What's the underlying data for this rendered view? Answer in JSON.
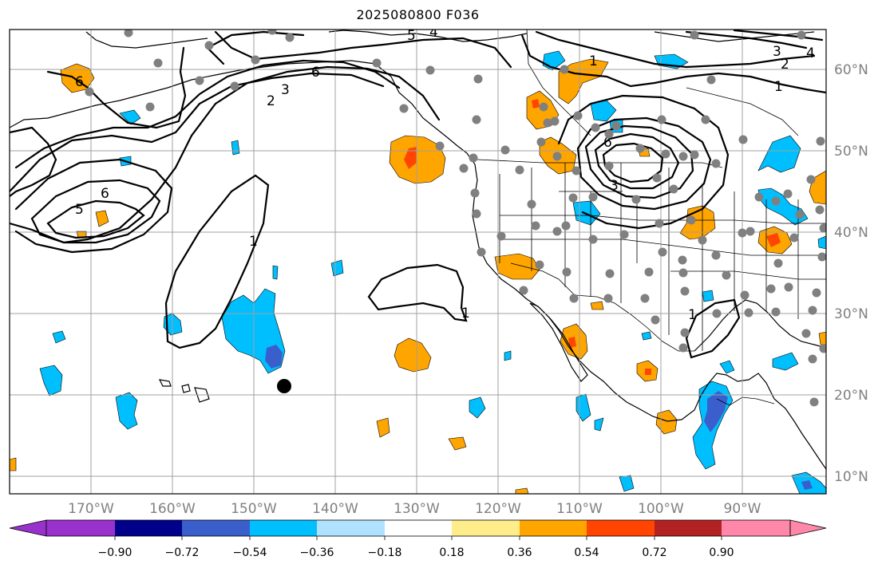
{
  "title": "2025080800 F036",
  "lon_labels": [
    "170°W",
    "160°W",
    "150°W",
    "140°W",
    "130°W",
    "120°W",
    "110°W",
    "100°W",
    "90°W"
  ],
  "lat_labels": [
    "60°N",
    "50°N",
    "40°N",
    "30°N",
    "20°N",
    "10°N"
  ],
  "colorbar": {
    "ticks": [
      "−0.90",
      "−0.72",
      "−0.54",
      "−0.36",
      "−0.18",
      "0.18",
      "0.36",
      "0.54",
      "0.72",
      "0.90"
    ],
    "colors": [
      "#9932cc",
      "#00008b",
      "#3a5fcd",
      "#00bfff",
      "#b0e2ff",
      "#ffffff",
      "#ffec8b",
      "#ffa500",
      "#ff4500",
      "#b22222",
      "#ff88aa"
    ]
  },
  "fill_colors": {
    "light_blue": "#00bfff",
    "mid_blue": "#3a5fcd",
    "orange": "#ffa500",
    "red_orange": "#ff4500"
  },
  "contour_labels": [
    "1",
    "1",
    "1",
    "1",
    "1",
    "2",
    "2",
    "3",
    "3",
    "3",
    "4",
    "4",
    "5",
    "5",
    "6",
    "6",
    "6",
    "6"
  ],
  "station_color": "#808080",
  "marker_color": "#000000"
}
